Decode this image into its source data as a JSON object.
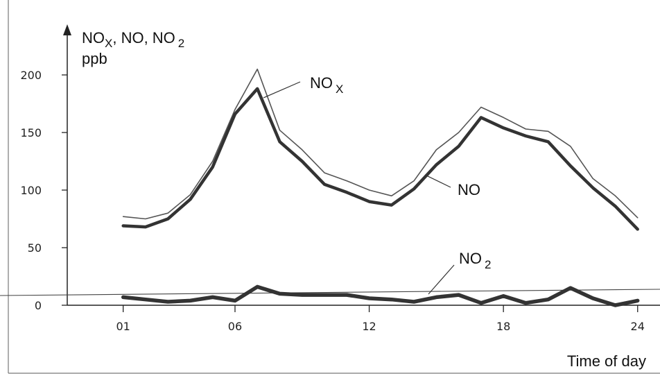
{
  "chart_data": {
    "type": "line",
    "ylabel_line1": "NO",
    "ylabel_sub1": "X",
    "ylabel_mid": ", NO, NO",
    "ylabel_sub2": "2",
    "ylabel_line2": "ppb",
    "xlabel": "Time of day",
    "ylim": [
      0,
      215
    ],
    "yticks": [
      0,
      50,
      100,
      150,
      200
    ],
    "xticks": [
      "01",
      "06",
      "12",
      "18",
      "24"
    ],
    "xtick_values": [
      1,
      6,
      12,
      18,
      24
    ],
    "xlim": [
      -1.5,
      25
    ],
    "grid": false,
    "series": [
      {
        "key": "nox",
        "label_main": "NO",
        "label_sub": "X",
        "x": [
          1,
          2,
          3,
          4,
          5,
          6,
          7,
          8,
          9,
          10,
          11,
          12,
          13,
          14,
          15,
          16,
          17,
          18,
          19,
          20,
          21,
          22,
          23,
          24
        ],
        "values": [
          77,
          75,
          80,
          96,
          125,
          170,
          205,
          152,
          135,
          115,
          108,
          100,
          95,
          108,
          135,
          150,
          172,
          163,
          153,
          151,
          138,
          110,
          95,
          76
        ]
      },
      {
        "key": "no",
        "label_main": "NO",
        "label_sub": "",
        "x": [
          1,
          2,
          3,
          4,
          5,
          6,
          7,
          8,
          9,
          10,
          11,
          12,
          13,
          14,
          15,
          16,
          17,
          18,
          19,
          20,
          21,
          22,
          23,
          24
        ],
        "values": [
          69,
          68,
          75,
          92,
          120,
          166,
          188,
          142,
          125,
          105,
          98,
          90,
          87,
          101,
          122,
          138,
          163,
          154,
          147,
          142,
          121,
          102,
          86,
          66
        ]
      },
      {
        "key": "no2",
        "label_main": "NO",
        "label_sub": "2",
        "x": [
          1,
          2,
          3,
          4,
          5,
          6,
          7,
          8,
          9,
          10,
          11,
          12,
          13,
          14,
          15,
          16,
          17,
          18,
          19,
          20,
          21,
          22,
          23,
          24
        ],
        "values": [
          7,
          5,
          3,
          4,
          7,
          4,
          16,
          10,
          9,
          9,
          9,
          6,
          5,
          3,
          7,
          9,
          2,
          8,
          2,
          5,
          15,
          6,
          0,
          4
        ]
      }
    ]
  }
}
